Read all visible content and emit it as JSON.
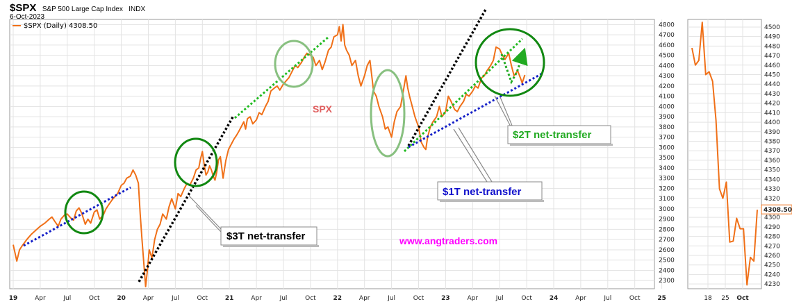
{
  "header": {
    "symbol": "$SPX",
    "name": "S&P 500 Large Cap Index",
    "exchange": "INDX",
    "date": "6-Oct-2023"
  },
  "legend": {
    "label": "$SPX (Daily) 4308.50",
    "color": "#f07018"
  },
  "chart_data": [
    {
      "type": "line",
      "title": "$SPX S&P 500 Large Cap Index INDX",
      "x_tick_labels": [
        "19",
        "Apr",
        "Jul",
        "Oct",
        "20",
        "Apr",
        "Jul",
        "Oct",
        "21",
        "Apr",
        "Jul",
        "Oct",
        "22",
        "Apr",
        "Jul",
        "Oct",
        "23",
        "Apr",
        "Jul",
        "Oct",
        "24",
        "Apr",
        "Jul",
        "Oct",
        "25"
      ],
      "y_ticks": [
        2300,
        2400,
        2500,
        2600,
        2700,
        2800,
        2900,
        3000,
        3100,
        3200,
        3300,
        3400,
        3500,
        3600,
        3700,
        3800,
        3900,
        4000,
        4100,
        4200,
        4300,
        4400,
        4500,
        4600,
        4700,
        4800
      ],
      "ylim": [
        2220,
        4850
      ],
      "x_range_months": [
        0,
        73
      ],
      "grid": true,
      "series": [
        {
          "name": "$SPX (Daily)",
          "color": "#f07018",
          "points": [
            [
              0.0,
              2650
            ],
            [
              0.4,
              2490
            ],
            [
              0.7,
              2600
            ],
            [
              1.0,
              2640
            ],
            [
              1.5,
              2700
            ],
            [
              2.0,
              2750
            ],
            [
              2.5,
              2790
            ],
            [
              3.0,
              2830
            ],
            [
              3.5,
              2860
            ],
            [
              4.0,
              2900
            ],
            [
              4.3,
              2920
            ],
            [
              4.6,
              2880
            ],
            [
              5.0,
              2830
            ],
            [
              5.3,
              2900
            ],
            [
              5.7,
              2940
            ],
            [
              6.0,
              2950
            ],
            [
              6.4,
              2910
            ],
            [
              6.7,
              2890
            ],
            [
              7.0,
              2980
            ],
            [
              7.3,
              3010
            ],
            [
              7.6,
              2960
            ],
            [
              8.0,
              2850
            ],
            [
              8.3,
              2900
            ],
            [
              8.6,
              2860
            ],
            [
              9.0,
              2970
            ],
            [
              9.3,
              2990
            ],
            [
              9.6,
              2900
            ],
            [
              10.0,
              2940
            ],
            [
              10.3,
              3000
            ],
            [
              10.6,
              3040
            ],
            [
              11.0,
              3090
            ],
            [
              11.3,
              3120
            ],
            [
              11.6,
              3150
            ],
            [
              12.0,
              3230
            ],
            [
              12.3,
              3250
            ],
            [
              12.6,
              3300
            ],
            [
              13.0,
              3320
            ],
            [
              13.3,
              3380
            ],
            [
              13.6,
              3330
            ],
            [
              13.9,
              3250
            ],
            [
              14.1,
              2950
            ],
            [
              14.3,
              2700
            ],
            [
              14.5,
              2470
            ],
            [
              14.7,
              2240
            ],
            [
              14.9,
              2400
            ],
            [
              15.1,
              2600
            ],
            [
              15.4,
              2520
            ],
            [
              15.7,
              2700
            ],
            [
              16.0,
              2800
            ],
            [
              16.3,
              2850
            ],
            [
              16.6,
              2950
            ],
            [
              17.0,
              2900
            ],
            [
              17.3,
              3020
            ],
            [
              17.6,
              3100
            ],
            [
              18.0,
              3000
            ],
            [
              18.3,
              3150
            ],
            [
              18.6,
              3120
            ],
            [
              19.0,
              3200
            ],
            [
              19.3,
              3250
            ],
            [
              19.6,
              3230
            ],
            [
              20.0,
              3300
            ],
            [
              20.3,
              3380
            ],
            [
              20.6,
              3400
            ],
            [
              20.8,
              3490
            ],
            [
              21.0,
              3560
            ],
            [
              21.2,
              3430
            ],
            [
              21.4,
              3330
            ],
            [
              21.6,
              3360
            ],
            [
              21.8,
              3420
            ],
            [
              22.0,
              3380
            ],
            [
              22.2,
              3320
            ],
            [
              22.4,
              3280
            ],
            [
              22.6,
              3360
            ],
            [
              22.8,
              3480
            ],
            [
              23.0,
              3510
            ],
            [
              23.3,
              3300
            ],
            [
              23.6,
              3470
            ],
            [
              23.9,
              3580
            ],
            [
              24.2,
              3630
            ],
            [
              24.5,
              3680
            ],
            [
              24.8,
              3720
            ],
            [
              25.0,
              3750
            ],
            [
              25.3,
              3800
            ],
            [
              25.6,
              3850
            ],
            [
              25.8,
              3780
            ],
            [
              26.0,
              3880
            ],
            [
              26.3,
              3900
            ],
            [
              26.6,
              3830
            ],
            [
              27.0,
              3870
            ],
            [
              27.3,
              3940
            ],
            [
              27.6,
              3920
            ],
            [
              28.0,
              4000
            ],
            [
              28.3,
              4050
            ],
            [
              28.6,
              4150
            ],
            [
              29.0,
              4180
            ],
            [
              29.3,
              4200
            ],
            [
              29.6,
              4160
            ],
            [
              30.0,
              4220
            ],
            [
              30.3,
              4250
            ],
            [
              30.6,
              4280
            ],
            [
              31.0,
              4350
            ],
            [
              31.3,
              4400
            ],
            [
              31.6,
              4380
            ],
            [
              32.0,
              4430
            ],
            [
              32.3,
              4480
            ],
            [
              32.6,
              4520
            ],
            [
              33.0,
              4500
            ],
            [
              33.3,
              4480
            ],
            [
              33.6,
              4400
            ],
            [
              34.0,
              4450
            ],
            [
              34.3,
              4360
            ],
            [
              34.6,
              4430
            ],
            [
              35.0,
              4550
            ],
            [
              35.3,
              4580
            ],
            [
              35.6,
              4680
            ],
            [
              36.0,
              4700
            ],
            [
              36.2,
              4780
            ],
            [
              36.4,
              4640
            ],
            [
              36.6,
              4800
            ],
            [
              36.8,
              4600
            ],
            [
              37.0,
              4550
            ],
            [
              37.3,
              4500
            ],
            [
              37.6,
              4400
            ],
            [
              38.0,
              4450
            ],
            [
              38.3,
              4300
            ],
            [
              38.6,
              4200
            ],
            [
              39.0,
              4300
            ],
            [
              39.3,
              4400
            ],
            [
              39.6,
              4450
            ],
            [
              39.8,
              4300
            ],
            [
              40.0,
              4150
            ],
            [
              40.3,
              4100
            ],
            [
              40.6,
              4000
            ],
            [
              41.0,
              3900
            ],
            [
              41.3,
              3780
            ],
            [
              41.6,
              3800
            ],
            [
              42.0,
              3700
            ],
            [
              42.3,
              3850
            ],
            [
              42.6,
              3950
            ],
            [
              43.0,
              4000
            ],
            [
              43.3,
              4150
            ],
            [
              43.6,
              4300
            ],
            [
              43.8,
              4180
            ],
            [
              44.0,
              4100
            ],
            [
              44.3,
              4000
            ],
            [
              44.6,
              3900
            ],
            [
              45.0,
              3800
            ],
            [
              45.3,
              3650
            ],
            [
              45.6,
              3600
            ],
            [
              45.8,
              3580
            ],
            [
              46.0,
              3700
            ],
            [
              46.3,
              3800
            ],
            [
              46.6,
              3850
            ],
            [
              47.0,
              3900
            ],
            [
              47.3,
              4000
            ],
            [
              47.6,
              3900
            ],
            [
              48.0,
              3950
            ],
            [
              48.3,
              4100
            ],
            [
              48.6,
              4050
            ],
            [
              49.0,
              3970
            ],
            [
              49.3,
              3950
            ],
            [
              49.6,
              4000
            ],
            [
              50.0,
              4050
            ],
            [
              50.3,
              4120
            ],
            [
              50.6,
              4100
            ],
            [
              51.0,
              4150
            ],
            [
              51.3,
              4200
            ],
            [
              51.6,
              4180
            ],
            [
              52.0,
              4280
            ],
            [
              52.3,
              4300
            ],
            [
              52.6,
              4350
            ],
            [
              53.0,
              4400
            ],
            [
              53.3,
              4450
            ],
            [
              53.6,
              4580
            ],
            [
              54.0,
              4560
            ],
            [
              54.3,
              4500
            ],
            [
              54.6,
              4460
            ],
            [
              55.0,
              4520
            ],
            [
              55.3,
              4400
            ],
            [
              55.6,
              4300
            ],
            [
              56.0,
              4350
            ],
            [
              56.3,
              4280
            ],
            [
              56.5,
              4230
            ],
            [
              56.8,
              4308
            ]
          ]
        }
      ]
    },
    {
      "type": "line",
      "title": "",
      "x_tick_labels": [
        "18",
        "25",
        "Oct"
      ],
      "y_ticks": [
        4230,
        4240,
        4250,
        4260,
        4270,
        4280,
        4290,
        4300,
        4310,
        4320,
        4330,
        4340,
        4350,
        4360,
        4370,
        4380,
        4390,
        4400,
        4410,
        4420,
        4430,
        4440,
        4450,
        4460,
        4470,
        4480,
        4490,
        4500
      ],
      "ylim": [
        4225,
        4508
      ],
      "grid": true,
      "last_value_badge": "4308.50",
      "series": [
        {
          "name": "$SPX (Daily)",
          "color": "#f07018",
          "points": [
            [
              0,
              4478
            ],
            [
              1,
              4460
            ],
            [
              2,
              4465
            ],
            [
              3,
              4505
            ],
            [
              4,
              4450
            ],
            [
              5,
              4453
            ],
            [
              6,
              4443
            ],
            [
              7,
              4402
            ],
            [
              8,
              4330
            ],
            [
              9,
              4320
            ],
            [
              10,
              4337
            ],
            [
              11,
              4274
            ],
            [
              12,
              4275
            ],
            [
              13,
              4299
            ],
            [
              14,
              4288
            ],
            [
              15,
              4288
            ],
            [
              16,
              4229
            ],
            [
              17,
              4258
            ],
            [
              18,
              4254
            ],
            [
              19,
              4308
            ]
          ]
        }
      ]
    }
  ],
  "annotations": {
    "spx_label": "SPX",
    "watermark": "www.angtraders.com",
    "box_3t": "$3T net-transfer",
    "box_2t": "$2T net-transfer",
    "box_1t": "$1T net-transfer",
    "colors": {
      "spx_label": "#e06060",
      "watermark": "#ff00ff",
      "box_3t": "#000000",
      "box_2t": "#22aa22",
      "box_1t": "#1010cc",
      "dark_circle": "#118811",
      "light_circle": "#88c080",
      "blue_line": "#1520c8",
      "green_line": "#22bb22",
      "black_line": "#000000"
    }
  }
}
